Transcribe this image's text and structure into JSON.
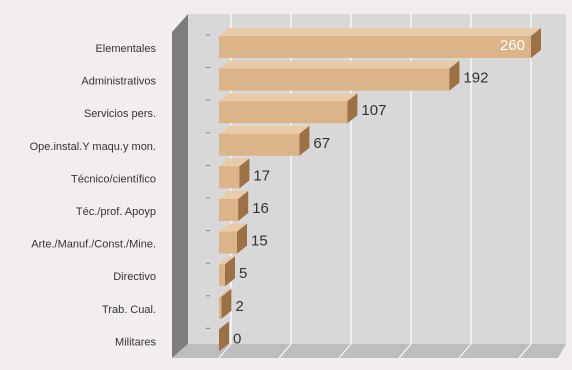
{
  "chart_data": {
    "type": "bar",
    "orientation": "horizontal",
    "categories": [
      "Elementales",
      "Administrativos",
      "Servicios pers.",
      "Ope.instal.Y maqu.y mon.",
      "Técnico/científico",
      "Téc./prof. Apoyp",
      "Arte./Manuf./Const./Mine.",
      "Directivo",
      "Trab. Cual.",
      "Militares"
    ],
    "values": [
      260,
      192,
      107,
      67,
      17,
      16,
      15,
      5,
      2,
      0
    ],
    "data_labels": [
      "260",
      "192",
      "107",
      "67",
      "17",
      "16",
      "15",
      "5",
      "2",
      "0"
    ],
    "xlim": [
      0,
      300
    ],
    "grid": true,
    "legend": "none",
    "style": "3d",
    "colors": {
      "bar_front": "#dcb48a",
      "bar_top": "#e9cba9",
      "bar_side": "#9c7146",
      "wall_back": "#d8d8d8",
      "wall_side": "#7d7d7d",
      "floor": "#bdbdbd",
      "gridline": "#ffffff",
      "page_bg": "#f3eeee",
      "label_text": "#333333",
      "value_text": "#333333",
      "value_text_inside": "#ffffff"
    }
  }
}
